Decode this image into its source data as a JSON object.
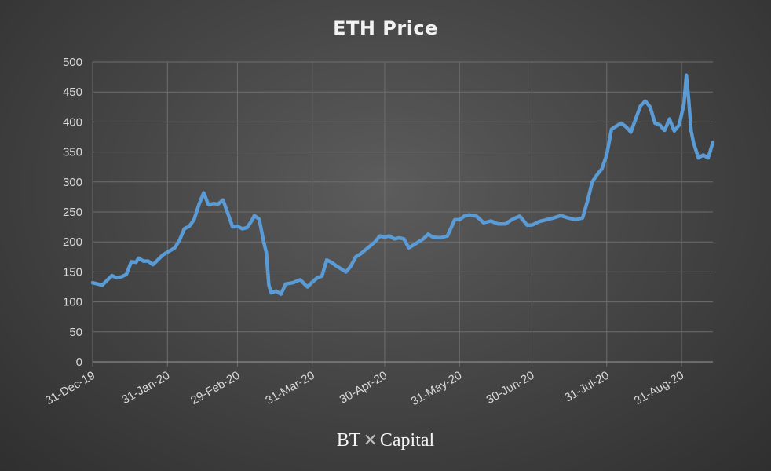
{
  "logo": {
    "left": "BT",
    "mark": "✕",
    "right": "Capital"
  },
  "chart_data": {
    "type": "line",
    "title": "ETH Price",
    "xlabel": "",
    "ylabel": "",
    "ylim": [
      0,
      500
    ],
    "y_ticks": [
      0,
      50,
      100,
      150,
      200,
      250,
      300,
      350,
      400,
      450,
      500
    ],
    "x_ticks": [
      "31-Dec-19",
      "31-Jan-20",
      "29-Feb-20",
      "31-Mar-20",
      "30-Apr-20",
      "31-May-20",
      "30-Jun-20",
      "31-Jul-20",
      "31-Aug-20"
    ],
    "x_range": [
      "2019-12-31",
      "2020-09-13"
    ],
    "grid": true,
    "legend": "none",
    "colors": {
      "line": "#5b9bd5",
      "background": "#474747",
      "grid": "#6e6e6e",
      "text": "#d9d9d9"
    },
    "series": [
      {
        "x": [
          "2019-12-31",
          "2020-01-02",
          "2020-01-04",
          "2020-01-06",
          "2020-01-08",
          "2020-01-10",
          "2020-01-12",
          "2020-01-14",
          "2020-01-16",
          "2020-01-18",
          "2020-01-19",
          "2020-01-21",
          "2020-01-23",
          "2020-01-25",
          "2020-01-27",
          "2020-01-29",
          "2020-01-31",
          "2020-02-03",
          "2020-02-05",
          "2020-02-07",
          "2020-02-09",
          "2020-02-11",
          "2020-02-13",
          "2020-02-15",
          "2020-02-17",
          "2020-02-19",
          "2020-02-21",
          "2020-02-23",
          "2020-02-25",
          "2020-02-27",
          "2020-02-29",
          "2020-03-02",
          "2020-03-04",
          "2020-03-06",
          "2020-03-07",
          "2020-03-09",
          "2020-03-11",
          "2020-03-12",
          "2020-03-13",
          "2020-03-14",
          "2020-03-16",
          "2020-03-18",
          "2020-03-20",
          "2020-03-23",
          "2020-03-26",
          "2020-03-29",
          "2020-03-31",
          "2020-04-02",
          "2020-04-04",
          "2020-04-06",
          "2020-04-08",
          "2020-04-10",
          "2020-04-12",
          "2020-04-14",
          "2020-04-16",
          "2020-04-18",
          "2020-04-20",
          "2020-04-23",
          "2020-04-26",
          "2020-04-28",
          "2020-04-30",
          "2020-05-02",
          "2020-05-04",
          "2020-05-06",
          "2020-05-08",
          "2020-05-10",
          "2020-05-12",
          "2020-05-14",
          "2020-05-16",
          "2020-05-18",
          "2020-05-20",
          "2020-05-23",
          "2020-05-26",
          "2020-05-29",
          "2020-05-31",
          "2020-06-02",
          "2020-06-04",
          "2020-06-07",
          "2020-06-10",
          "2020-06-13",
          "2020-06-16",
          "2020-06-19",
          "2020-06-22",
          "2020-06-25",
          "2020-06-28",
          "2020-06-30",
          "2020-07-03",
          "2020-07-06",
          "2020-07-09",
          "2020-07-12",
          "2020-07-15",
          "2020-07-18",
          "2020-07-21",
          "2020-07-23",
          "2020-07-25",
          "2020-07-27",
          "2020-07-29",
          "2020-07-31",
          "2020-08-02",
          "2020-08-04",
          "2020-08-06",
          "2020-08-08",
          "2020-08-10",
          "2020-08-12",
          "2020-08-14",
          "2020-08-16",
          "2020-08-18",
          "2020-08-20",
          "2020-08-22",
          "2020-08-24",
          "2020-08-26",
          "2020-08-28",
          "2020-08-30",
          "2020-09-01",
          "2020-09-02",
          "2020-09-03",
          "2020-09-04",
          "2020-09-05",
          "2020-09-07",
          "2020-09-09",
          "2020-09-11",
          "2020-09-13"
        ],
        "values": [
          132,
          130,
          128,
          136,
          144,
          140,
          142,
          146,
          167,
          166,
          173,
          168,
          168,
          162,
          170,
          178,
          183,
          190,
          203,
          222,
          226,
          237,
          262,
          282,
          262,
          264,
          263,
          270,
          248,
          225,
          226,
          222,
          224,
          236,
          244,
          238,
          198,
          182,
          128,
          115,
          118,
          113,
          130,
          132,
          137,
          125,
          133,
          140,
          143,
          170,
          166,
          160,
          155,
          150,
          160,
          175,
          180,
          190,
          200,
          210,
          208,
          210,
          205,
          207,
          205,
          190,
          195,
          200,
          205,
          213,
          208,
          207,
          210,
          237,
          237,
          243,
          245,
          243,
          232,
          235,
          230,
          230,
          238,
          243,
          228,
          228,
          234,
          237,
          240,
          244,
          240,
          237,
          240,
          268,
          300,
          312,
          322,
          345,
          388,
          393,
          398,
          392,
          383,
          405,
          427,
          435,
          425,
          398,
          395,
          386,
          405,
          385,
          395,
          430,
          478,
          435,
          385,
          365,
          340,
          345,
          340,
          366
        ]
      }
    ]
  }
}
